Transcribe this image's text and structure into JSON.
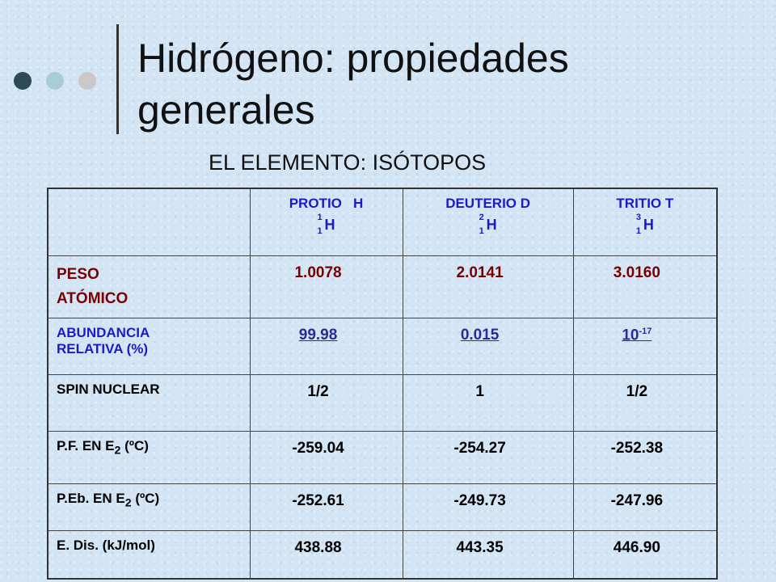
{
  "header": {
    "title": [
      "Hidrógeno: propiedades",
      "generales"
    ],
    "subtitle": "EL ELEMENTO: ISÓTOPOS"
  },
  "table": {
    "columns": [
      {
        "name": "PROTIO   H",
        "mass": "1",
        "atomic": "1",
        "symbol": "H"
      },
      {
        "name": "DEUTERIO D",
        "mass": "2",
        "atomic": "1",
        "symbol": "H"
      },
      {
        "name": "TRITIO T",
        "mass": "3",
        "atomic": "1",
        "symbol": "H"
      }
    ],
    "rows": [
      {
        "label": [
          "PESO",
          "ATÓMICO"
        ],
        "values": [
          "1.0078",
          "2.0141",
          "3.0160"
        ]
      },
      {
        "label": [
          "ABUNDANCIA",
          "RELATIVA (%)"
        ],
        "values": [
          "99.98",
          "0.015",
          {
            "base": "10",
            "sup": "-17"
          }
        ]
      },
      {
        "label": [
          "SPIN NUCLEAR"
        ],
        "values": [
          "1/2",
          "1",
          "1/2"
        ]
      },
      {
        "label": [
          "P.F.  EN E"
        ],
        "label_sub": "2",
        "label_after": " (ºC)",
        "values": [
          "-259.04",
          "-254.27",
          "-252.38"
        ]
      },
      {
        "label": [
          "P.Eb. EN E"
        ],
        "label_sub": "2",
        "label_after": " (ºC)",
        "values": [
          "-252.61",
          "-249.73",
          "-247.96"
        ]
      },
      {
        "label": [
          "E. Dis. (kJ/mol)"
        ],
        "values": [
          "438.88",
          "443.35",
          "446.90"
        ]
      }
    ]
  }
}
